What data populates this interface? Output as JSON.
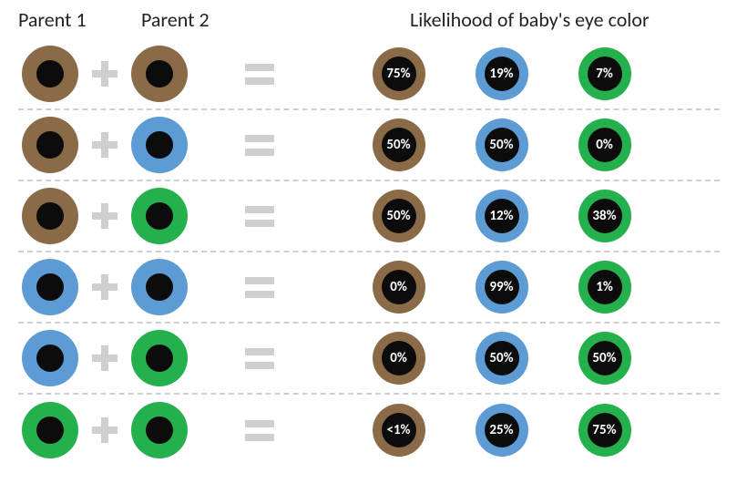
{
  "type": "infographic-table",
  "background_color": "#ffffff",
  "divider_color": "#cfcfcf",
  "divider_style": "dashed",
  "symbol_color": "#cfcfcf",
  "text_color": "#222222",
  "pupil_color": "#0c0c0c",
  "result_text_color": "#ffffff",
  "header_fontsize": 22,
  "percent_fontsize": 15,
  "percent_fontweight": 700,
  "eye_colors": {
    "brown": "#8b6b47",
    "blue": "#5d9bd5",
    "green": "#24b04d"
  },
  "headers": {
    "p1": "Parent 1",
    "p2": "Parent 2",
    "likelihood": "Likelihood of baby's eye color"
  },
  "parent_eye_diameter": 62,
  "parent_pupil_diameter": 30,
  "result_eye_diameter": 58,
  "result_pupil_diameter": 38,
  "rows": [
    {
      "p1": "brown",
      "p2": "brown",
      "brown_pct": "75%",
      "blue_pct": "19%",
      "green_pct": "7%"
    },
    {
      "p1": "brown",
      "p2": "blue",
      "brown_pct": "50%",
      "blue_pct": "50%",
      "green_pct": "0%"
    },
    {
      "p1": "brown",
      "p2": "green",
      "brown_pct": "50%",
      "blue_pct": "12%",
      "green_pct": "38%"
    },
    {
      "p1": "blue",
      "p2": "blue",
      "brown_pct": "0%",
      "blue_pct": "99%",
      "green_pct": "1%"
    },
    {
      "p1": "blue",
      "p2": "green",
      "brown_pct": "0%",
      "blue_pct": "50%",
      "green_pct": "50%"
    },
    {
      "p1": "green",
      "p2": "green",
      "brown_pct": "<1%",
      "blue_pct": "25%",
      "green_pct": "75%"
    }
  ]
}
